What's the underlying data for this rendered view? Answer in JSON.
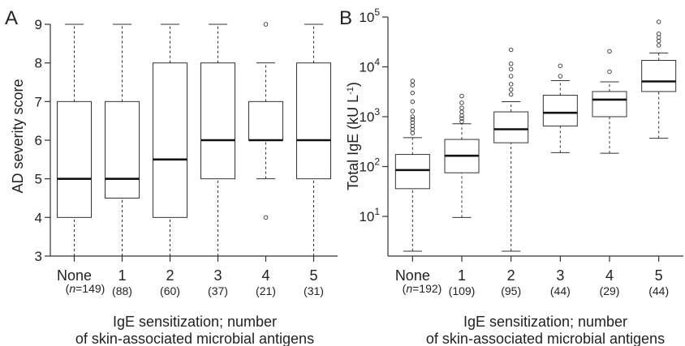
{
  "chart_data": [
    {
      "panel": "A",
      "type": "boxplot",
      "ylabel": "AD severity score",
      "xlabel": [
        "IgE sensitization; number",
        "of skin-associated microbial antigens"
      ],
      "ylim": [
        3,
        9
      ],
      "yticks": [
        "3",
        "4",
        "5",
        "6",
        "7",
        "8",
        "9"
      ],
      "categories": [
        "None",
        "1",
        "2",
        "3",
        "4",
        "5"
      ],
      "counts": [
        {
          "prefix": "(",
          "n": "n",
          "eq": "=149)",
          "label": ""
        },
        {
          "label": "(88)"
        },
        {
          "label": "(60)"
        },
        {
          "label": "(37)"
        },
        {
          "label": "(21)"
        },
        {
          "label": "(31)"
        }
      ],
      "boxes": [
        {
          "min": 3,
          "q1": 4,
          "median": 5,
          "q3": 7,
          "max": 9,
          "outliers": []
        },
        {
          "min": 3,
          "q1": 4.5,
          "median": 5,
          "q3": 7,
          "max": 9,
          "outliers": []
        },
        {
          "min": 3,
          "q1": 4,
          "median": 5.5,
          "q3": 8,
          "max": 9,
          "outliers": []
        },
        {
          "min": 3,
          "q1": 5,
          "median": 6,
          "q3": 8,
          "max": 9,
          "outliers": []
        },
        {
          "min": 5,
          "q1": 6,
          "median": 6,
          "q3": 7,
          "max": 8,
          "outliers": [
            9,
            4
          ]
        },
        {
          "min": 3,
          "q1": 5,
          "median": 6,
          "q3": 8,
          "max": 9,
          "outliers": []
        }
      ]
    },
    {
      "panel": "B",
      "type": "boxplot",
      "ylabel": "Total IgE (kU L",
      "ylabel_sup": "-1",
      "ylabel_end": ")",
      "xlabel": [
        "IgE sensitization; number",
        "of skin-associated microbial antigens"
      ],
      "yscale": "log",
      "ylim": [
        1.6,
        100000
      ],
      "yticks": [
        {
          "base": "10",
          "exp": "1",
          "value": 10
        },
        {
          "base": "10",
          "exp": "2",
          "value": 100
        },
        {
          "base": "10",
          "exp": "3",
          "value": 1000
        },
        {
          "base": "10",
          "exp": "4",
          "value": 10000
        },
        {
          "base": "10",
          "exp": "5",
          "value": 100000
        }
      ],
      "categories": [
        "None",
        "1",
        "2",
        "3",
        "4",
        "5"
      ],
      "counts": [
        {
          "prefix": "(",
          "n": "n",
          "eq": "=192)",
          "label": ""
        },
        {
          "label": "(109)"
        },
        {
          "label": "(95)"
        },
        {
          "label": "(44)"
        },
        {
          "label": "(29)"
        },
        {
          "label": "(44)"
        }
      ],
      "boxes": [
        {
          "min": 2,
          "q1": 36,
          "median": 85,
          "q3": 175,
          "max": 380,
          "outliers": [
            470,
            560,
            650,
            760,
            880,
            1000,
            1300,
            2000,
            3000,
            4300,
            5200
          ]
        },
        {
          "min": 9.5,
          "q1": 75,
          "median": 165,
          "q3": 350,
          "max": 720,
          "outliers": [
            800,
            920,
            1050,
            1250,
            1500,
            1900,
            2600
          ]
        },
        {
          "min": 2,
          "q1": 300,
          "median": 560,
          "q3": 1250,
          "max": 2000,
          "outliers": [
            2800,
            3500,
            4500,
            6500,
            9000,
            11500,
            22000
          ]
        },
        {
          "min": 190,
          "q1": 650,
          "median": 1200,
          "q3": 2700,
          "max": 5300,
          "outliers": [
            6500,
            10500
          ]
        },
        {
          "min": 185,
          "q1": 1000,
          "median": 2200,
          "q3": 3200,
          "max": 5000,
          "outliers": [
            8000,
            20500
          ]
        },
        {
          "min": 370,
          "q1": 3200,
          "median": 5100,
          "q3": 13500,
          "max": 19000,
          "outliers": [
            27000,
            33000,
            39000,
            46000,
            80000
          ]
        }
      ]
    }
  ]
}
